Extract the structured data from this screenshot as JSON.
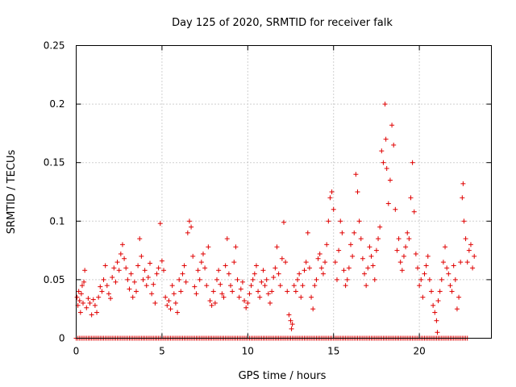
{
  "chart_data": {
    "type": "scatter",
    "title": "Day 125 of 2020, SRMTID for receiver falk",
    "xlabel": "GPS time / hours",
    "ylabel": "SRMTID / TECUs",
    "xlim": [
      0,
      24.2
    ],
    "ylim": [
      0,
      0.25
    ],
    "x_ticks": [
      0,
      5,
      10,
      15,
      20
    ],
    "x_tick_labels": [
      "0",
      "5",
      "10",
      "15",
      "20"
    ],
    "y_ticks": [
      0,
      0.05,
      0.1,
      0.15,
      0.2,
      0.25
    ],
    "y_tick_labels": [
      "0",
      "0.05",
      "0.1",
      "0.15",
      "0.2",
      "0.25"
    ],
    "grid": true,
    "marker": "+",
    "color": "#e00000",
    "series": [
      {
        "name": "SRMTID",
        "points": [
          [
            0.05,
            0.035
          ],
          [
            0.1,
            0.028
          ],
          [
            0.15,
            0.04
          ],
          [
            0.2,
            0.032
          ],
          [
            0.25,
            0.022
          ],
          [
            0.3,
            0.038
          ],
          [
            0.35,
            0.045
          ],
          [
            0.4,
            0.03
          ],
          [
            0.45,
            0.048
          ],
          [
            0.5,
            0.058
          ],
          [
            0.6,
            0.026
          ],
          [
            0.7,
            0.034
          ],
          [
            0.8,
            0.03
          ],
          [
            0.9,
            0.02
          ],
          [
            1.0,
            0.033
          ],
          [
            1.1,
            0.028
          ],
          [
            1.2,
            0.022
          ],
          [
            1.3,
            0.035
          ],
          [
            1.4,
            0.044
          ],
          [
            1.5,
            0.04
          ],
          [
            1.6,
            0.05
          ],
          [
            1.7,
            0.062
          ],
          [
            1.8,
            0.045
          ],
          [
            1.9,
            0.038
          ],
          [
            2.0,
            0.034
          ],
          [
            2.1,
            0.052
          ],
          [
            2.2,
            0.06
          ],
          [
            2.3,
            0.048
          ],
          [
            2.4,
            0.065
          ],
          [
            2.5,
            0.058
          ],
          [
            2.6,
            0.072
          ],
          [
            2.7,
            0.08
          ],
          [
            2.8,
            0.068
          ],
          [
            2.9,
            0.06
          ],
          [
            3.0,
            0.05
          ],
          [
            3.1,
            0.042
          ],
          [
            3.2,
            0.055
          ],
          [
            3.3,
            0.035
          ],
          [
            3.4,
            0.048
          ],
          [
            3.5,
            0.04
          ],
          [
            3.6,
            0.062
          ],
          [
            3.7,
            0.085
          ],
          [
            3.8,
            0.07
          ],
          [
            3.9,
            0.05
          ],
          [
            4.0,
            0.058
          ],
          [
            4.1,
            0.045
          ],
          [
            4.2,
            0.052
          ],
          [
            4.3,
            0.064
          ],
          [
            4.4,
            0.038
          ],
          [
            4.5,
            0.046
          ],
          [
            4.6,
            0.03
          ],
          [
            4.7,
            0.055
          ],
          [
            4.8,
            0.06
          ],
          [
            4.9,
            0.098
          ],
          [
            5.0,
            0.066
          ],
          [
            5.1,
            0.058
          ],
          [
            5.2,
            0.035
          ],
          [
            5.3,
            0.028
          ],
          [
            5.4,
            0.032
          ],
          [
            5.5,
            0.025
          ],
          [
            5.6,
            0.045
          ],
          [
            5.7,
            0.038
          ],
          [
            5.8,
            0.03
          ],
          [
            5.9,
            0.022
          ],
          [
            6.0,
            0.05
          ],
          [
            6.1,
            0.04
          ],
          [
            6.2,
            0.055
          ],
          [
            6.3,
            0.062
          ],
          [
            6.4,
            0.048
          ],
          [
            6.5,
            0.09
          ],
          [
            6.6,
            0.1
          ],
          [
            6.7,
            0.095
          ],
          [
            6.8,
            0.07
          ],
          [
            6.9,
            0.044
          ],
          [
            7.0,
            0.038
          ],
          [
            7.1,
            0.058
          ],
          [
            7.2,
            0.05
          ],
          [
            7.3,
            0.065
          ],
          [
            7.4,
            0.072
          ],
          [
            7.5,
            0.06
          ],
          [
            7.6,
            0.045
          ],
          [
            7.7,
            0.078
          ],
          [
            7.8,
            0.032
          ],
          [
            7.9,
            0.028
          ],
          [
            8.0,
            0.04
          ],
          [
            8.1,
            0.03
          ],
          [
            8.2,
            0.05
          ],
          [
            8.3,
            0.058
          ],
          [
            8.4,
            0.046
          ],
          [
            8.5,
            0.038
          ],
          [
            8.6,
            0.035
          ],
          [
            8.7,
            0.062
          ],
          [
            8.8,
            0.085
          ],
          [
            8.9,
            0.055
          ],
          [
            9.0,
            0.045
          ],
          [
            9.1,
            0.04
          ],
          [
            9.2,
            0.065
          ],
          [
            9.3,
            0.078
          ],
          [
            9.4,
            0.05
          ],
          [
            9.5,
            0.035
          ],
          [
            9.6,
            0.042
          ],
          [
            9.7,
            0.048
          ],
          [
            9.8,
            0.032
          ],
          [
            9.9,
            0.026
          ],
          [
            10.0,
            0.03
          ],
          [
            10.1,
            0.038
          ],
          [
            10.2,
            0.045
          ],
          [
            10.3,
            0.05
          ],
          [
            10.4,
            0.055
          ],
          [
            10.5,
            0.062
          ],
          [
            10.6,
            0.04
          ],
          [
            10.7,
            0.035
          ],
          [
            10.8,
            0.048
          ],
          [
            10.9,
            0.058
          ],
          [
            11.0,
            0.045
          ],
          [
            11.1,
            0.05
          ],
          [
            11.2,
            0.038
          ],
          [
            11.3,
            0.03
          ],
          [
            11.4,
            0.04
          ],
          [
            11.5,
            0.052
          ],
          [
            11.6,
            0.06
          ],
          [
            11.7,
            0.078
          ],
          [
            11.8,
            0.055
          ],
          [
            11.9,
            0.045
          ],
          [
            12.0,
            0.068
          ],
          [
            12.1,
            0.099
          ],
          [
            12.2,
            0.065
          ],
          [
            12.3,
            0.04
          ],
          [
            12.4,
            0.02
          ],
          [
            12.5,
            0.015
          ],
          [
            12.55,
            0.008
          ],
          [
            12.6,
            0.012
          ],
          [
            12.7,
            0.045
          ],
          [
            12.8,
            0.04
          ],
          [
            12.9,
            0.05
          ],
          [
            13.0,
            0.055
          ],
          [
            13.1,
            0.035
          ],
          [
            13.2,
            0.045
          ],
          [
            13.3,
            0.058
          ],
          [
            13.4,
            0.065
          ],
          [
            13.5,
            0.09
          ],
          [
            13.6,
            0.06
          ],
          [
            13.7,
            0.035
          ],
          [
            13.8,
            0.025
          ],
          [
            13.9,
            0.045
          ],
          [
            14.0,
            0.05
          ],
          [
            14.1,
            0.068
          ],
          [
            14.2,
            0.072
          ],
          [
            14.3,
            0.06
          ],
          [
            14.4,
            0.055
          ],
          [
            14.5,
            0.065
          ],
          [
            14.6,
            0.08
          ],
          [
            14.7,
            0.1
          ],
          [
            14.8,
            0.12
          ],
          [
            14.9,
            0.125
          ],
          [
            15.0,
            0.11
          ],
          [
            15.1,
            0.065
          ],
          [
            15.2,
            0.05
          ],
          [
            15.3,
            0.075
          ],
          [
            15.4,
            0.1
          ],
          [
            15.5,
            0.09
          ],
          [
            15.6,
            0.058
          ],
          [
            15.7,
            0.045
          ],
          [
            15.8,
            0.05
          ],
          [
            15.9,
            0.06
          ],
          [
            16.0,
            0.08
          ],
          [
            16.1,
            0.07
          ],
          [
            16.2,
            0.09
          ],
          [
            16.3,
            0.14
          ],
          [
            16.4,
            0.125
          ],
          [
            16.5,
            0.1
          ],
          [
            16.6,
            0.085
          ],
          [
            16.7,
            0.068
          ],
          [
            16.8,
            0.055
          ],
          [
            16.9,
            0.045
          ],
          [
            17.0,
            0.06
          ],
          [
            17.1,
            0.078
          ],
          [
            17.2,
            0.07
          ],
          [
            17.3,
            0.062
          ],
          [
            17.4,
            0.05
          ],
          [
            17.5,
            0.075
          ],
          [
            17.6,
            0.085
          ],
          [
            17.7,
            0.095
          ],
          [
            17.8,
            0.16
          ],
          [
            17.9,
            0.15
          ],
          [
            18.0,
            0.2
          ],
          [
            18.05,
            0.17
          ],
          [
            18.1,
            0.145
          ],
          [
            18.2,
            0.115
          ],
          [
            18.3,
            0.135
          ],
          [
            18.4,
            0.182
          ],
          [
            18.5,
            0.165
          ],
          [
            18.6,
            0.11
          ],
          [
            18.7,
            0.075
          ],
          [
            18.8,
            0.085
          ],
          [
            18.9,
            0.065
          ],
          [
            19.0,
            0.058
          ],
          [
            19.1,
            0.07
          ],
          [
            19.2,
            0.078
          ],
          [
            19.3,
            0.09
          ],
          [
            19.4,
            0.085
          ],
          [
            19.5,
            0.12
          ],
          [
            19.6,
            0.15
          ],
          [
            19.7,
            0.108
          ],
          [
            19.8,
            0.072
          ],
          [
            19.9,
            0.06
          ],
          [
            20.0,
            0.045
          ],
          [
            20.1,
            0.05
          ],
          [
            20.2,
            0.035
          ],
          [
            20.3,
            0.055
          ],
          [
            20.4,
            0.062
          ],
          [
            20.5,
            0.07
          ],
          [
            20.6,
            0.05
          ],
          [
            20.7,
            0.04
          ],
          [
            20.8,
            0.028
          ],
          [
            20.9,
            0.022
          ],
          [
            21.0,
            0.015
          ],
          [
            21.05,
            0.005
          ],
          [
            21.1,
            0.032
          ],
          [
            21.2,
            0.04
          ],
          [
            21.3,
            0.05
          ],
          [
            21.4,
            0.065
          ],
          [
            21.5,
            0.078
          ],
          [
            21.6,
            0.06
          ],
          [
            21.7,
            0.055
          ],
          [
            21.8,
            0.045
          ],
          [
            21.9,
            0.04
          ],
          [
            22.0,
            0.062
          ],
          [
            22.1,
            0.05
          ],
          [
            22.2,
            0.025
          ],
          [
            22.3,
            0.035
          ],
          [
            22.4,
            0.065
          ],
          [
            22.5,
            0.12
          ],
          [
            22.55,
            0.132
          ],
          [
            22.6,
            0.1
          ],
          [
            22.7,
            0.085
          ],
          [
            22.8,
            0.065
          ],
          [
            22.9,
            0.075
          ],
          [
            23.0,
            0.08
          ],
          [
            23.1,
            0.06
          ],
          [
            23.2,
            0.07
          ]
        ]
      }
    ],
    "zero_baseline": {
      "x_start": 0.0,
      "x_end": 22.8,
      "step": 0.1,
      "y": 0
    }
  }
}
